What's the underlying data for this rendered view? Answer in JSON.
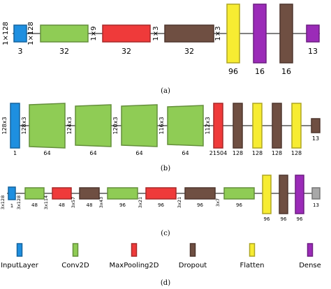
{
  "colors": {
    "input": "#1e8fe0",
    "conv": "#8fcc55",
    "pool": "#ef3a3a",
    "drop": "#6f4f42",
    "flat": "#f7ec32",
    "dense": "#9b2bb8",
    "gray": "#a8a8a8",
    "line": "#000000"
  },
  "panel_a": {
    "caption": "(a)",
    "layers": [
      {
        "type": "input",
        "name": "InputLayer",
        "below": "3"
      },
      {
        "type": "conv",
        "name": "Conv2D",
        "below": "32"
      },
      {
        "type": "pool",
        "name": "MaxPooling2D",
        "below": "32"
      },
      {
        "type": "drop",
        "name": "Dropout",
        "below": "32"
      },
      {
        "type": "flat",
        "name": "Flatten",
        "below": "96"
      },
      {
        "type": "dense",
        "name": "Dense",
        "below": "16"
      },
      {
        "type": "drop",
        "name": "Dropout",
        "below": "16"
      },
      {
        "type": "dense",
        "name": "Dense",
        "below": "13"
      }
    ],
    "shapes": [
      "1×128",
      "1×128",
      "1×9",
      "1×3",
      "1×3"
    ]
  },
  "panel_b": {
    "caption": "(b)",
    "layers": [
      {
        "type": "input",
        "name": "InputLayer",
        "below": "1"
      },
      {
        "type": "conv",
        "name": "Conv2D",
        "below": "64"
      },
      {
        "type": "conv",
        "name": "Conv2D",
        "below": "64"
      },
      {
        "type": "conv",
        "name": "Conv2D",
        "below": "64"
      },
      {
        "type": "conv",
        "name": "Conv2D",
        "below": "64"
      },
      {
        "type": "pool",
        "name": "MaxPooling2D",
        "below": "21504"
      },
      {
        "type": "drop",
        "name": "Dropout",
        "below": "128"
      },
      {
        "type": "flat",
        "name": "Flatten",
        "below": "128"
      },
      {
        "type": "drop",
        "name": "Dropout",
        "below": "128"
      },
      {
        "type": "flat",
        "name": "Flatten",
        "below": "128"
      },
      {
        "type": "drop",
        "name": "Dropout",
        "below": "13"
      }
    ],
    "shapes": [
      "128x3",
      "128x3",
      "124x3",
      "120x3",
      "116x3",
      "112x3"
    ]
  },
  "panel_c": {
    "caption": "(c)",
    "layers": [
      {
        "type": "input",
        "name": "InputLayer",
        "below": "1"
      },
      {
        "type": "conv",
        "name": "Conv2D",
        "below": "48"
      },
      {
        "type": "pool",
        "name": "MaxPooling2D",
        "below": "48"
      },
      {
        "type": "drop",
        "name": "Dropout",
        "below": "48"
      },
      {
        "type": "conv",
        "name": "Conv2D",
        "below": "96"
      },
      {
        "type": "pool",
        "name": "MaxPooling2D",
        "below": "96"
      },
      {
        "type": "drop",
        "name": "Dropout",
        "below": "96"
      },
      {
        "type": "conv",
        "name": "Conv2D",
        "below": "96"
      },
      {
        "type": "flat",
        "name": "Flatten",
        "below": "96"
      },
      {
        "type": "drop",
        "name": "Dropout",
        "below": "96"
      },
      {
        "type": "dense",
        "name": "Dense",
        "below": "96"
      },
      {
        "type": "gray",
        "name": "Dense",
        "below": "13"
      }
    ],
    "shapes": [
      "3x128",
      "3x128",
      "3x114",
      "3x57",
      "3x43",
      "3x21",
      "3x21",
      "3x7"
    ]
  },
  "legend": {
    "caption": "(d)",
    "items": [
      {
        "type": "input",
        "label": "InputLayer"
      },
      {
        "type": "conv",
        "label": "Conv2D"
      },
      {
        "type": "pool",
        "label": "MaxPooling2D"
      },
      {
        "type": "drop",
        "label": "Dropout"
      },
      {
        "type": "flat",
        "label": "Flatten"
      },
      {
        "type": "dense",
        "label": "Dense"
      }
    ]
  }
}
